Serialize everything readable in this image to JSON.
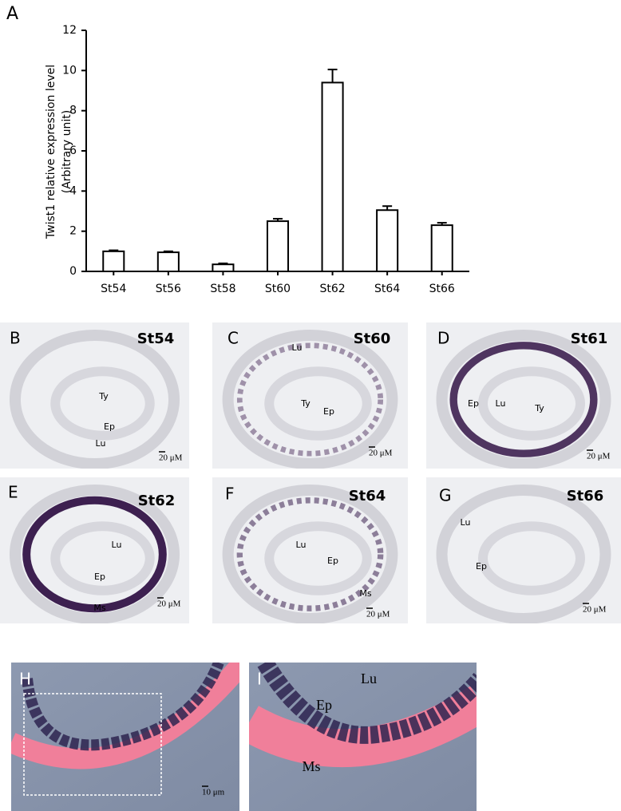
{
  "chart_data": {
    "type": "bar",
    "panel_label": "A",
    "y_label": [
      "Twist1 relative expression level",
      "(Arbitrary unit)"
    ],
    "categories": [
      "St54",
      "St56",
      "St58",
      "St60",
      "St62",
      "St64",
      "St66"
    ],
    "values": [
      1.0,
      0.95,
      0.35,
      2.5,
      9.4,
      3.05,
      2.3
    ],
    "errors": [
      0.05,
      0.05,
      0.05,
      0.12,
      0.65,
      0.2,
      0.12
    ],
    "color": "#ffffff",
    "ylim": [
      0,
      12
    ],
    "yticks": [
      0,
      2,
      4,
      6,
      8,
      10,
      12
    ]
  },
  "panels": [
    {
      "letter": "B",
      "stage": "St54",
      "labels": [
        "Ty",
        "Ep",
        "Lu"
      ],
      "scale": "20 μM"
    },
    {
      "letter": "C",
      "stage": "St60",
      "labels": [
        "Lu",
        "Ty",
        "Ep"
      ],
      "scale": "20 μM"
    },
    {
      "letter": "D",
      "stage": "St61",
      "labels": [
        "Ep",
        "Lu",
        "Ty"
      ],
      "scale": "20 μM"
    },
    {
      "letter": "E",
      "stage": "St62",
      "labels": [
        "Lu",
        "Ep",
        "Ms"
      ],
      "scale": "20 μM"
    },
    {
      "letter": "F",
      "stage": "St64",
      "labels": [
        "Lu",
        "Ep",
        "Ms"
      ],
      "scale": "20 μM"
    },
    {
      "letter": "G",
      "stage": "St66",
      "labels": [
        "Lu",
        "Ep"
      ],
      "scale": "20 μM"
    },
    {
      "letter": "H",
      "scale": "10 μm"
    },
    {
      "letter": "I",
      "labels": [
        "Lu",
        "Ep",
        "Ms"
      ]
    }
  ]
}
